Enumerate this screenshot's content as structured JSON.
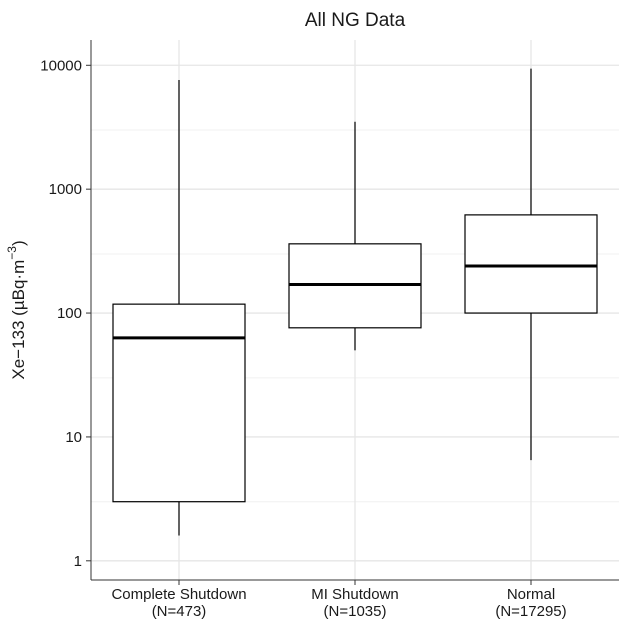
{
  "chart_data": {
    "type": "box",
    "title": "All NG Data",
    "xlabel": "",
    "ylabel": "Xe−133 (µBq·m⁻³)",
    "ylabel_parts": {
      "main": "Xe−133 (µBq·m",
      "superscript": "−3",
      "close": ")"
    },
    "yscale": "log10",
    "ylim": [
      0.7,
      16000
    ],
    "yticks": [
      1,
      10,
      100,
      1000,
      10000
    ],
    "ytick_labels": [
      "1",
      "10",
      "100",
      "1000",
      "10000"
    ],
    "minor_gridlines": [
      3,
      30,
      300,
      3000
    ],
    "grid": true,
    "legend": "none",
    "categories": [
      {
        "name": "Complete Shutdown",
        "count_label": "(N=473)"
      },
      {
        "name": "MI Shutdown",
        "count_label": "(N=1035)"
      },
      {
        "name": "Normal",
        "count_label": "(N=17295)"
      }
    ],
    "boxes": [
      {
        "category": "Complete Shutdown",
        "whisker_low": 1.6,
        "q1": 3.0,
        "median": 63,
        "q3": 118,
        "whisker_high": 7600
      },
      {
        "category": "MI Shutdown",
        "whisker_low": 50,
        "q1": 76,
        "median": 170,
        "q3": 362,
        "whisker_high": 3500
      },
      {
        "category": "Normal",
        "whisker_low": 6.5,
        "q1": 100,
        "median": 240,
        "q3": 620,
        "whisker_high": 9400
      }
    ],
    "colors": {
      "background": "#ffffff",
      "box_fill": "#ffffff",
      "box_stroke": "#000000",
      "grid_major": "#e6e6e6",
      "grid_minor": "#f0f0f0",
      "axis": "#333333"
    }
  }
}
